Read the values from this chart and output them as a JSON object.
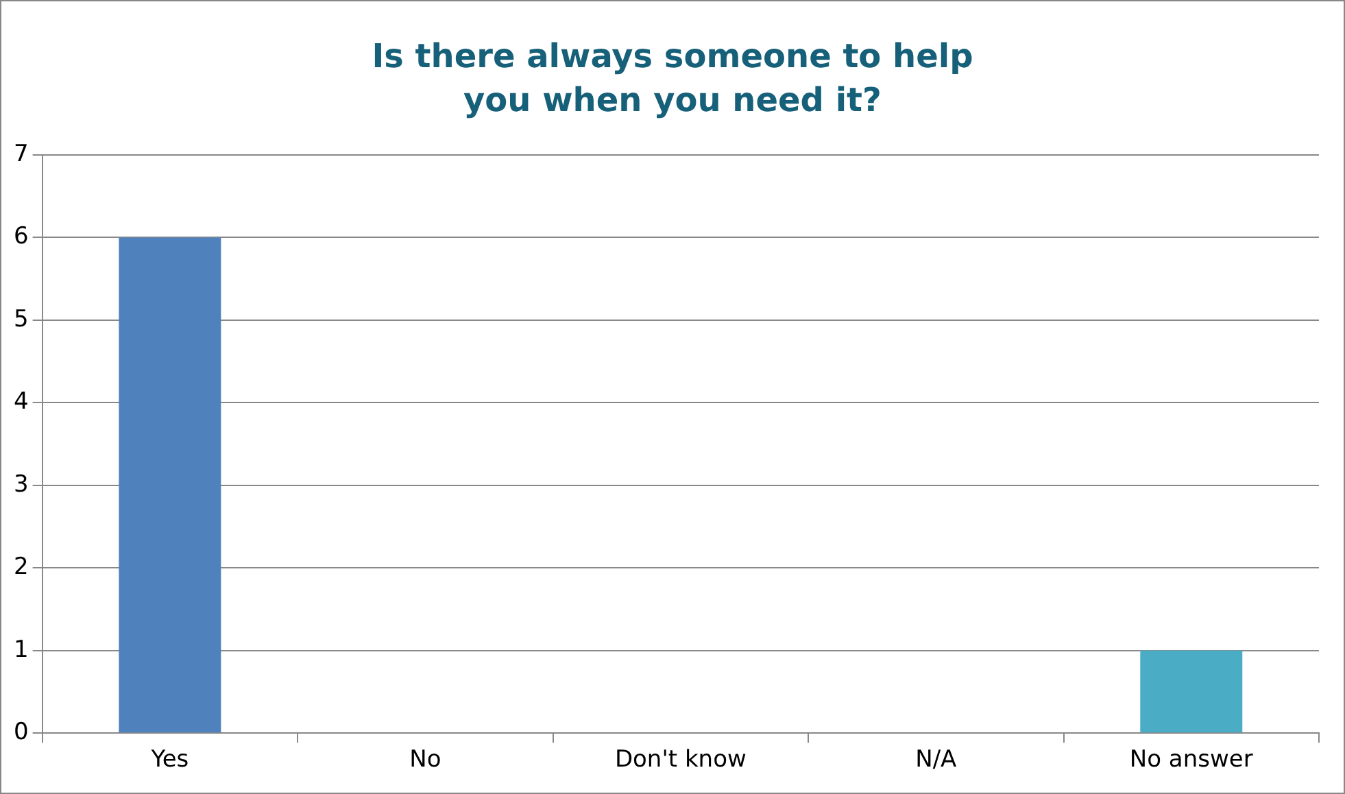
{
  "chart_data": {
    "type": "bar",
    "title": "Is there always someone to help you when you need it?",
    "categories": [
      "Yes",
      "No",
      "Don't know",
      "N/A",
      "No answer"
    ],
    "values": [
      6,
      0,
      0,
      0,
      1
    ],
    "colors": [
      "#4f81bd",
      "#c0504d",
      "#9bbb59",
      "#8064a2",
      "#4bacc6"
    ],
    "ylim": [
      0,
      7
    ],
    "yticks": [
      0,
      1,
      2,
      3,
      4,
      5,
      6,
      7
    ],
    "grid": "y",
    "legend": false
  }
}
